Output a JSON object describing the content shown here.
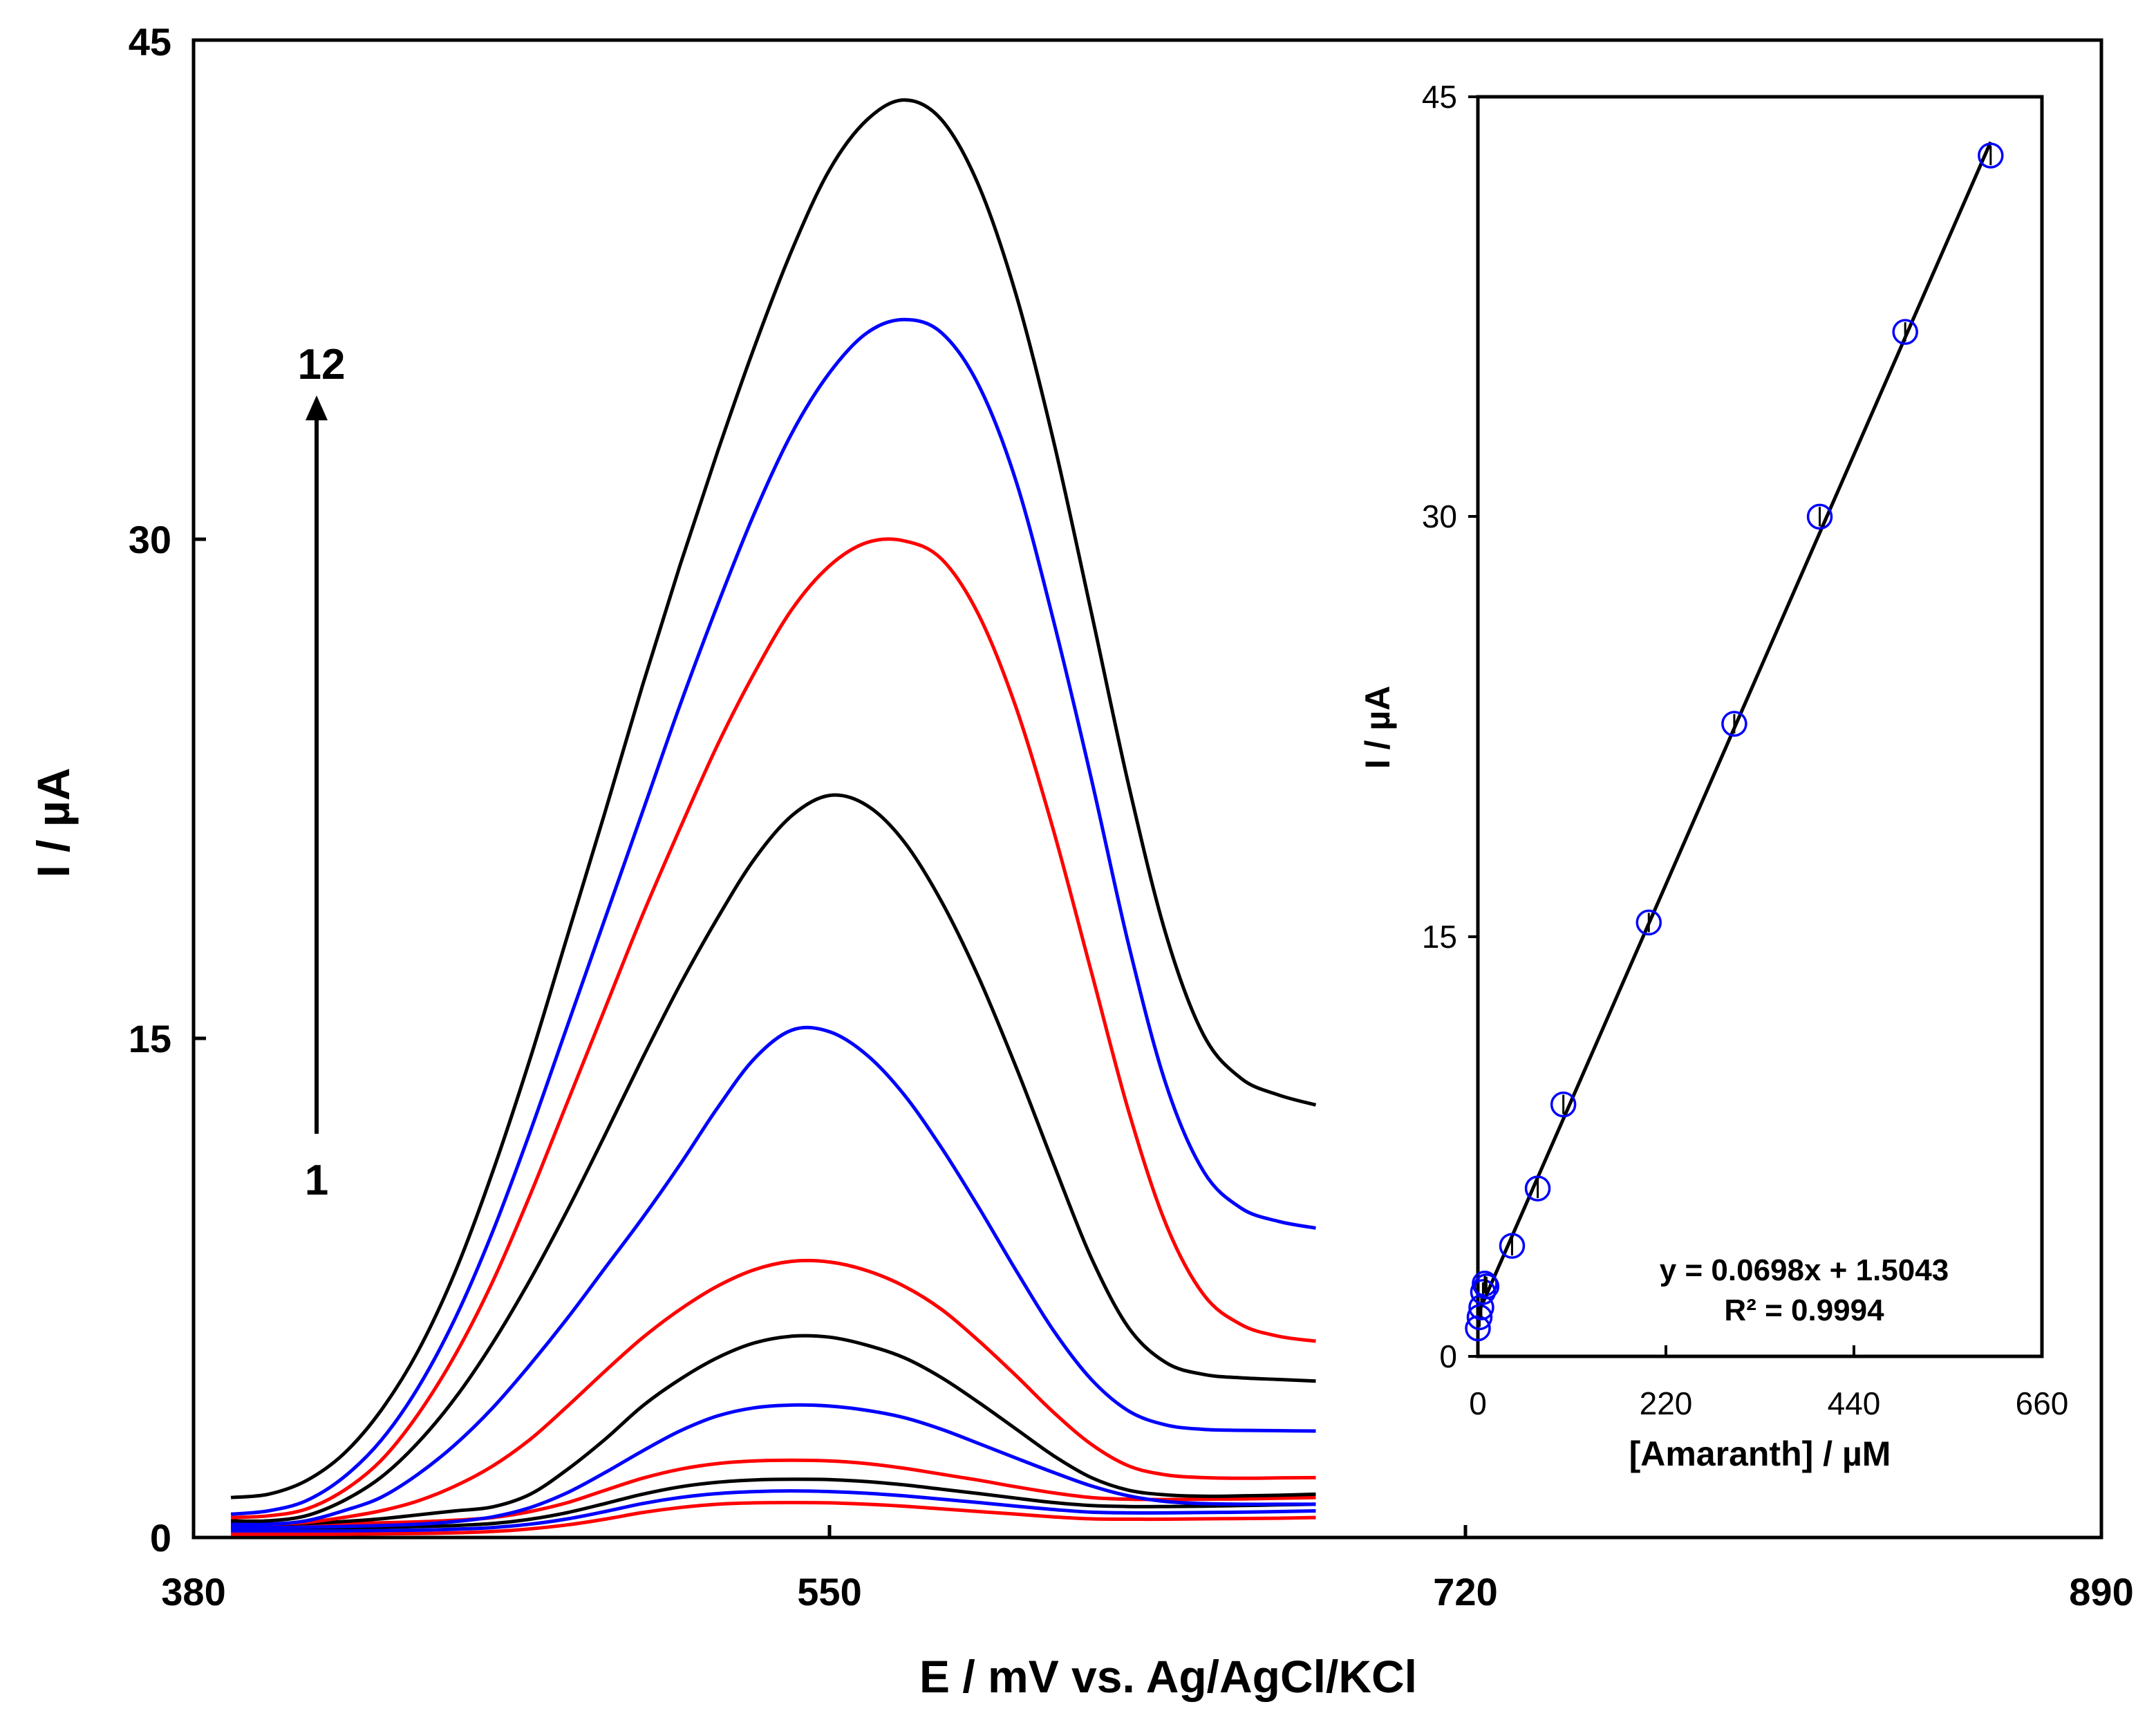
{
  "chart_data": [
    {
      "type": "line",
      "xlabel": "E / mV vs. Ag/AgCl/KCl",
      "ylabel": "I / µA",
      "xlim": [
        380,
        890
      ],
      "ylim": [
        0,
        45
      ],
      "x_ticks": [
        "380",
        "550",
        "720",
        "890"
      ],
      "y_ticks": [
        "0",
        "15",
        "30",
        "45"
      ],
      "grid": false,
      "annotations": {
        "arrow_start_label": "1",
        "arrow_end_label": "12"
      },
      "x": [
        390,
        400,
        410,
        420,
        430,
        440,
        450,
        460,
        470,
        480,
        490,
        500,
        510,
        520,
        530,
        540,
        550,
        560,
        570,
        580,
        590,
        600,
        610,
        620,
        630,
        640,
        650,
        660,
        670,
        680
      ],
      "series": [
        {
          "color": "#ff0000",
          "peak_x": 560,
          "baseline_start": 0.1,
          "baseline_end": 0.6,
          "values": [
            0.1,
            0.1,
            0.1,
            0.1,
            0.11,
            0.12,
            0.14,
            0.18,
            0.26,
            0.38,
            0.55,
            0.75,
            0.9,
            1.0,
            1.04,
            1.05,
            1.04,
            1.0,
            0.94,
            0.86,
            0.78,
            0.7,
            0.62,
            0.56,
            0.55,
            0.55,
            0.56,
            0.57,
            0.58,
            0.6
          ]
        },
        {
          "color": "#0000ff",
          "peak_x": 560,
          "baseline_start": 0.2,
          "baseline_end": 0.8,
          "values": [
            0.2,
            0.2,
            0.2,
            0.2,
            0.21,
            0.22,
            0.25,
            0.3,
            0.4,
            0.56,
            0.78,
            1.02,
            1.2,
            1.32,
            1.38,
            1.4,
            1.38,
            1.33,
            1.25,
            1.15,
            1.05,
            0.94,
            0.84,
            0.76,
            0.74,
            0.74,
            0.75,
            0.76,
            0.78,
            0.8
          ]
        },
        {
          "color": "#000000",
          "peak_x": 562,
          "baseline_start": 0.3,
          "baseline_end": 1.0,
          "values": [
            0.3,
            0.3,
            0.3,
            0.3,
            0.31,
            0.33,
            0.36,
            0.42,
            0.55,
            0.75,
            1.02,
            1.3,
            1.52,
            1.66,
            1.73,
            1.75,
            1.74,
            1.68,
            1.58,
            1.45,
            1.32,
            1.18,
            1.05,
            0.96,
            0.93,
            0.93,
            0.94,
            0.96,
            0.98,
            1.0
          ]
        },
        {
          "color": "#ff0000",
          "peak_x": 560,
          "baseline_start": 0.4,
          "baseline_end": 1.2,
          "values": [
            0.4,
            0.4,
            0.41,
            0.42,
            0.44,
            0.47,
            0.52,
            0.6,
            0.78,
            1.05,
            1.42,
            1.78,
            2.05,
            2.22,
            2.3,
            2.32,
            2.3,
            2.22,
            2.08,
            1.9,
            1.72,
            1.52,
            1.34,
            1.2,
            1.15,
            1.14,
            1.15,
            1.16,
            1.18,
            1.2
          ]
        },
        {
          "color": "#0000ff",
          "peak_x": 560,
          "baseline_start": 0.3,
          "baseline_end": 1.0,
          "values": [
            0.3,
            0.3,
            0.31,
            0.33,
            0.36,
            0.4,
            0.48,
            0.62,
            0.9,
            1.35,
            1.95,
            2.6,
            3.2,
            3.65,
            3.9,
            3.98,
            3.95,
            3.82,
            3.6,
            3.25,
            2.82,
            2.38,
            1.95,
            1.55,
            1.25,
            1.08,
            1.02,
            1.0,
            1.0,
            1.0
          ]
        },
        {
          "color": "#000000",
          "peak_x": 560,
          "baseline_start": 0.4,
          "baseline_end": 1.3,
          "values": [
            0.4,
            0.4,
            0.42,
            0.48,
            0.56,
            0.68,
            0.8,
            0.92,
            1.3,
            2.05,
            2.95,
            3.95,
            4.75,
            5.4,
            5.85,
            6.05,
            6.02,
            5.78,
            5.4,
            4.8,
            4.05,
            3.25,
            2.45,
            1.8,
            1.42,
            1.28,
            1.24,
            1.25,
            1.27,
            1.3
          ]
        },
        {
          "color": "#ff0000",
          "peak_x": 560,
          "baseline_start": 0.4,
          "baseline_end": 1.8,
          "values": [
            0.4,
            0.4,
            0.45,
            0.6,
            0.8,
            1.1,
            1.55,
            2.15,
            2.95,
            3.95,
            5.0,
            6.0,
            6.85,
            7.55,
            8.05,
            8.3,
            8.28,
            8.02,
            7.55,
            6.85,
            5.9,
            4.85,
            3.75,
            2.8,
            2.15,
            1.88,
            1.8,
            1.78,
            1.79,
            1.8
          ]
        },
        {
          "color": "#0000ff",
          "peak_x": 557,
          "baseline_start": 0.4,
          "baseline_end": 3.2,
          "values": [
            0.4,
            0.4,
            0.5,
            0.8,
            1.2,
            1.9,
            2.8,
            3.9,
            5.2,
            6.6,
            8.1,
            9.6,
            11.2,
            12.9,
            14.4,
            15.25,
            15.2,
            14.5,
            13.3,
            11.7,
            9.9,
            8.0,
            6.2,
            4.75,
            3.8,
            3.38,
            3.25,
            3.22,
            3.21,
            3.2
          ]
        },
        {
          "color": "#000000",
          "peak_x": 562,
          "baseline_start": 0.5,
          "baseline_end": 4.7,
          "values": [
            0.5,
            0.5,
            0.65,
            1.1,
            1.8,
            2.85,
            4.2,
            5.85,
            7.75,
            9.85,
            12.1,
            14.4,
            16.6,
            18.6,
            20.4,
            21.7,
            22.3,
            22.0,
            20.9,
            19.1,
            16.8,
            14.1,
            11.2,
            8.4,
            6.3,
            5.25,
            4.9,
            4.8,
            4.75,
            4.7
          ]
        },
        {
          "color": "#ff0000",
          "peak_x": 575,
          "baseline_start": 0.6,
          "baseline_end": 5.9,
          "values": [
            0.6,
            0.65,
            0.85,
            1.4,
            2.3,
            3.7,
            5.5,
            7.7,
            10.3,
            13.1,
            15.9,
            18.7,
            21.3,
            23.8,
            26.0,
            27.9,
            29.2,
            29.9,
            29.95,
            29.4,
            27.7,
            24.9,
            21.2,
            17.0,
            12.8,
            9.4,
            7.3,
            6.4,
            6.05,
            5.9
          ]
        },
        {
          "color": "#0000ff",
          "peak_x": 575,
          "baseline_start": 0.7,
          "baseline_end": 9.3,
          "values": [
            0.7,
            0.8,
            1.1,
            1.8,
            2.9,
            4.5,
            6.6,
            9.2,
            12.2,
            15.4,
            18.6,
            21.8,
            25.0,
            28.0,
            30.8,
            33.2,
            35.0,
            36.2,
            36.6,
            36.2,
            34.6,
            31.7,
            27.5,
            22.8,
            17.8,
            13.6,
            11.0,
            9.9,
            9.5,
            9.3
          ]
        },
        {
          "color": "#000000",
          "peak_x": 572,
          "baseline_start": 1.2,
          "baseline_end": 13.0,
          "values": [
            1.2,
            1.3,
            1.7,
            2.5,
            3.8,
            5.6,
            8.0,
            11.0,
            14.4,
            18.1,
            21.8,
            25.6,
            29.2,
            32.6,
            35.8,
            38.7,
            41.1,
            42.6,
            43.2,
            42.6,
            40.6,
            37.3,
            32.9,
            27.8,
            22.6,
            18.1,
            15.1,
            13.8,
            13.3,
            13.0
          ]
        }
      ]
    },
    {
      "type": "scatter",
      "xlabel": "[Amaranth]  / µM",
      "ylabel": "I / µA",
      "xlim": [
        0,
        660
      ],
      "ylim": [
        0,
        45
      ],
      "x_ticks": [
        "0",
        "220",
        "440",
        "660"
      ],
      "y_ticks": [
        "0",
        "15",
        "30",
        "45"
      ],
      "equation": "y = 0.0698x  + 1.5043",
      "r_squared": "R² = 0.9994",
      "fit": {
        "slope": 0.0698,
        "intercept": 1.5043
      },
      "marker_color": "#0000ff",
      "points": [
        {
          "x": 0,
          "y": 1.0
        },
        {
          "x": 2,
          "y": 1.4
        },
        {
          "x": 4,
          "y": 1.75
        },
        {
          "x": 6,
          "y": 2.3
        },
        {
          "x": 8,
          "y": 2.6
        },
        {
          "x": 10,
          "y": 2.5
        },
        {
          "x": 40,
          "y": 3.95
        },
        {
          "x": 70,
          "y": 6.0
        },
        {
          "x": 100,
          "y": 9.0
        },
        {
          "x": 200,
          "y": 15.5
        },
        {
          "x": 300,
          "y": 22.6
        },
        {
          "x": 400,
          "y": 30.0
        },
        {
          "x": 500,
          "y": 36.6
        },
        {
          "x": 600,
          "y": 42.9
        }
      ]
    }
  ]
}
